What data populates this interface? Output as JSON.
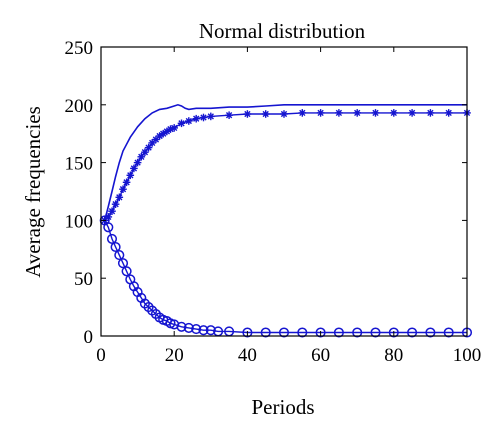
{
  "chart_data": {
    "type": "line",
    "title": "Normal distribution",
    "xlabel": "Periods",
    "ylabel": "Average frequencies",
    "xlim": [
      0,
      100
    ],
    "ylim": [
      0,
      250
    ],
    "xticks": [
      "0",
      "20",
      "40",
      "60",
      "80",
      "100"
    ],
    "yticks": [
      "0",
      "50",
      "100",
      "150",
      "200",
      "250"
    ],
    "grid": false,
    "legend": "none",
    "color": "#1515d0",
    "series": [
      {
        "style": "solid-line",
        "x": [
          1,
          2,
          3,
          4,
          5,
          6,
          8,
          10,
          12,
          14,
          16,
          18,
          20,
          21,
          22,
          23,
          24,
          26,
          28,
          30,
          35,
          40,
          45,
          50,
          60,
          70,
          80,
          90,
          100
        ],
        "y": [
          100,
          112,
          125,
          138,
          150,
          160,
          172,
          181,
          188,
          193,
          196,
          197,
          199,
          200,
          199,
          197,
          196,
          197,
          197,
          197,
          198,
          198,
          199,
          200,
          200,
          200,
          200,
          200,
          200
        ]
      },
      {
        "style": "star-markers",
        "x": [
          1,
          2,
          3,
          4,
          5,
          6,
          7,
          8,
          9,
          10,
          11,
          12,
          13,
          14,
          15,
          16,
          17,
          18,
          19,
          20,
          22,
          24,
          26,
          28,
          30,
          35,
          40,
          45,
          50,
          55,
          60,
          65,
          70,
          75,
          80,
          85,
          90,
          95,
          100
        ],
        "y": [
          100,
          103,
          108,
          114,
          120,
          127,
          133,
          139,
          145,
          150,
          155,
          159,
          163,
          167,
          170,
          173,
          175,
          177,
          179,
          180,
          184,
          186,
          188,
          189,
          190,
          191,
          192,
          192,
          192,
          193,
          193,
          193,
          193,
          193,
          193,
          193,
          193,
          193,
          193
        ]
      },
      {
        "style": "circle-markers",
        "x": [
          1,
          2,
          3,
          4,
          5,
          6,
          7,
          8,
          9,
          10,
          11,
          12,
          13,
          14,
          15,
          16,
          17,
          18,
          19,
          20,
          22,
          24,
          26,
          28,
          30,
          32,
          35,
          40,
          45,
          50,
          55,
          60,
          65,
          70,
          75,
          80,
          85,
          90,
          95,
          100
        ],
        "y": [
          100,
          94,
          84,
          77,
          70,
          63,
          56,
          49,
          43,
          38,
          33,
          28,
          25,
          22,
          19,
          16,
          14,
          13,
          11,
          10,
          8,
          7,
          6,
          5,
          5,
          4,
          4,
          3,
          3,
          3,
          3,
          3,
          3,
          3,
          3,
          3,
          3,
          3,
          3,
          3
        ]
      }
    ]
  }
}
